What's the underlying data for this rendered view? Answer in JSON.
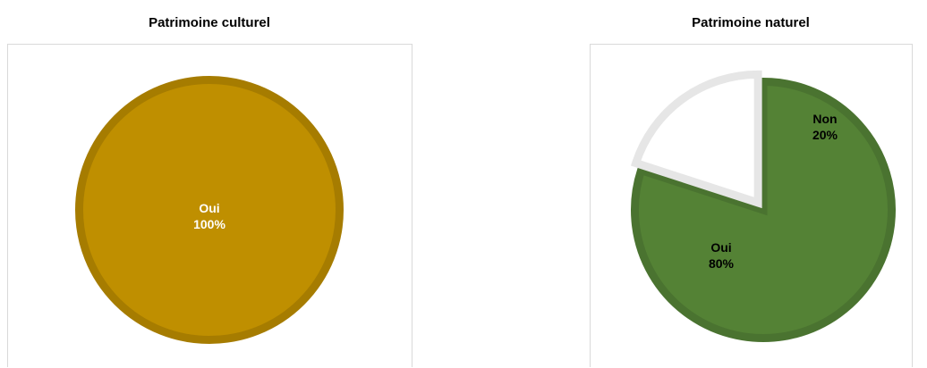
{
  "chart_data": [
    {
      "type": "pie",
      "title": "Patrimoine culturel",
      "slices": [
        {
          "label": "Oui",
          "value": 100,
          "value_label": "100%",
          "color": "#bf8f00",
          "edge_color": "#a67c00",
          "label_color": "#ffffff"
        }
      ]
    },
    {
      "type": "pie",
      "title": "Patrimoine naturel",
      "slices": [
        {
          "label": "Oui",
          "value": 80,
          "value_label": "80%",
          "color": "#548235",
          "edge_color": "#4a7330",
          "label_color": "#000000"
        },
        {
          "label": "Non",
          "value": 20,
          "value_label": "20%",
          "color": "#ffffff",
          "edge_color": "#e6e6e6",
          "label_color": "#000000"
        }
      ]
    }
  ]
}
